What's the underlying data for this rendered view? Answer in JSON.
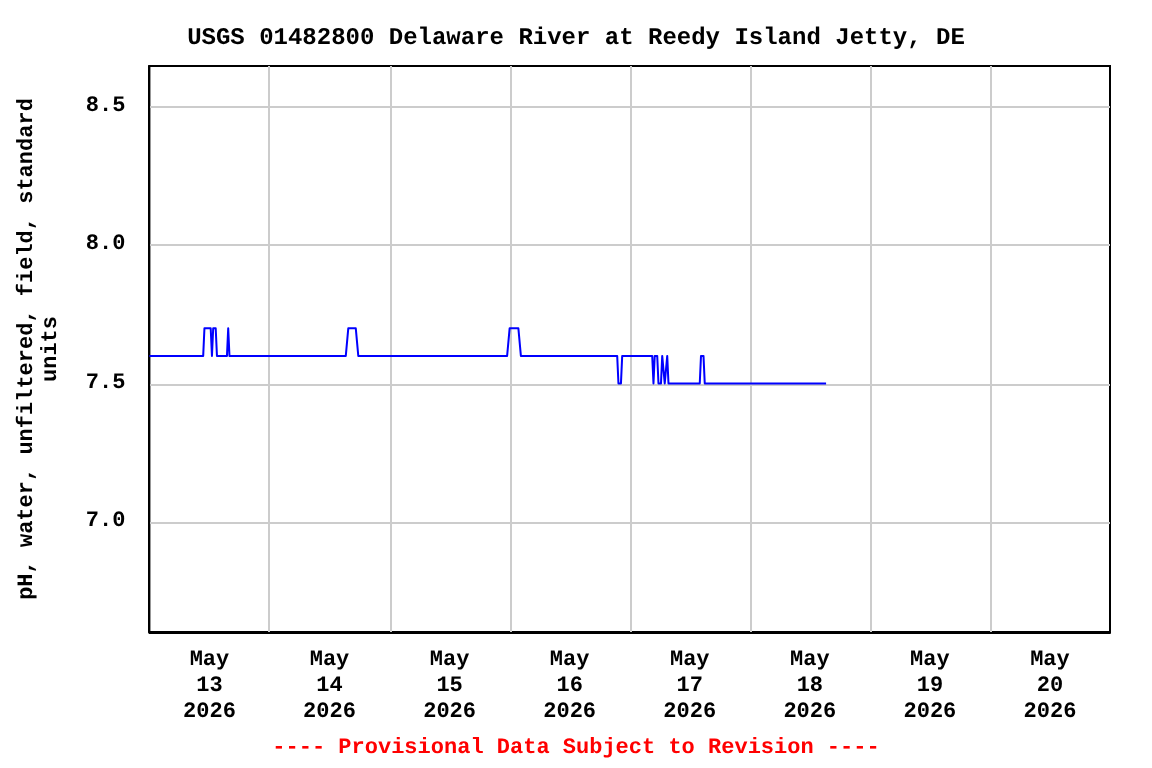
{
  "chart_data": {
    "type": "line",
    "title": "USGS 01482800 Delaware River at Reedy Island Jetty, DE",
    "ylabel": "pH, water, unfiltered, field, standard\nunits",
    "annotations": [
      "---- Provisional Data Subject to Revision ----"
    ],
    "xlim": [
      "2026-05-13T00:00",
      "2026-05-21T00:00"
    ],
    "xticks": [
      {
        "value": "2026-05-13T12:00",
        "label": "May\n13\n2026"
      },
      {
        "value": "2026-05-14T00:00",
        "label": null
      },
      {
        "value": "2026-05-14T12:00",
        "label": "May\n14\n2026"
      },
      {
        "value": "2026-05-15T00:00",
        "label": null
      },
      {
        "value": "2026-05-15T12:00",
        "label": "May\n15\n2026"
      },
      {
        "value": "2026-05-16T00:00",
        "label": null
      },
      {
        "value": "2026-05-16T12:00",
        "label": "May\n16\n2026"
      },
      {
        "value": "2026-05-17T00:00",
        "label": null
      },
      {
        "value": "2026-05-17T12:00",
        "label": "May\n17\n2026"
      },
      {
        "value": "2026-05-18T00:00",
        "label": null
      },
      {
        "value": "2026-05-18T12:00",
        "label": "May\n18\n2026"
      },
      {
        "value": "2026-05-19T00:00",
        "label": null
      },
      {
        "value": "2026-05-19T12:00",
        "label": "May\n19\n2026"
      },
      {
        "value": "2026-05-20T00:00",
        "label": null
      },
      {
        "value": "2026-05-20T12:00",
        "label": "May\n20\n2026"
      }
    ],
    "ylim": [
      6.6,
      8.65
    ],
    "yticks": [
      {
        "value": 7,
        "label": "7.0"
      },
      {
        "value": 7.5,
        "label": "7.5"
      },
      {
        "value": 8,
        "label": "8.0"
      },
      {
        "value": 8.5,
        "label": "8.5"
      }
    ],
    "grid": true,
    "series": [
      {
        "color": "#0000ff",
        "x": [
          "2026-05-13T00:00",
          "2026-05-13T10:45",
          "2026-05-13T11:00",
          "2026-05-13T12:15",
          "2026-05-13T12:30",
          "2026-05-13T12:45",
          "2026-05-13T13:15",
          "2026-05-13T13:30",
          "2026-05-13T15:30",
          "2026-05-13T15:45",
          "2026-05-13T16:00",
          "2026-05-14T15:15",
          "2026-05-14T15:45",
          "2026-05-14T17:15",
          "2026-05-14T17:45",
          "2026-05-15T23:30",
          "2026-05-16T00:00",
          "2026-05-16T01:45",
          "2026-05-16T02:15",
          "2026-05-16T21:30",
          "2026-05-16T21:45",
          "2026-05-16T22:15",
          "2026-05-16T22:30",
          "2026-05-17T04:30",
          "2026-05-17T04:45",
          "2026-05-17T05:00",
          "2026-05-17T05:30",
          "2026-05-17T05:45",
          "2026-05-17T06:15",
          "2026-05-17T06:30",
          "2026-05-17T07:00",
          "2026-05-17T07:30",
          "2026-05-17T07:45",
          "2026-05-17T14:00",
          "2026-05-17T14:15",
          "2026-05-17T14:45",
          "2026-05-17T15:00",
          "2026-05-18T15:15"
        ],
        "values": [
          7.6,
          7.6,
          7.7,
          7.7,
          7.6,
          7.7,
          7.7,
          7.6,
          7.6,
          7.7,
          7.6,
          7.6,
          7.7,
          7.7,
          7.6,
          7.6,
          7.7,
          7.7,
          7.6,
          7.6,
          7.5,
          7.5,
          7.6,
          7.6,
          7.5,
          7.6,
          7.6,
          7.5,
          7.5,
          7.6,
          7.5,
          7.6,
          7.5,
          7.5,
          7.6,
          7.6,
          7.5,
          7.5
        ]
      }
    ]
  }
}
